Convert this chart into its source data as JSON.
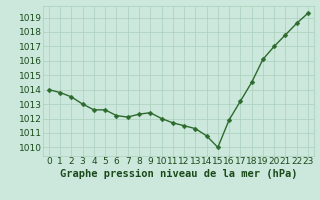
{
  "x": [
    0,
    1,
    2,
    3,
    4,
    5,
    6,
    7,
    8,
    9,
    10,
    11,
    12,
    13,
    14,
    15,
    16,
    17,
    18,
    19,
    20,
    21,
    22,
    23
  ],
  "y": [
    1014.0,
    1013.8,
    1013.5,
    1013.0,
    1012.6,
    1012.6,
    1012.2,
    1012.1,
    1012.3,
    1012.4,
    1012.0,
    1011.7,
    1011.5,
    1011.3,
    1010.8,
    1010.0,
    1011.9,
    1013.2,
    1014.5,
    1016.1,
    1017.0,
    1017.8,
    1018.6,
    1019.3
  ],
  "line_color": "#2d6a2d",
  "marker": "D",
  "marker_size": 2.5,
  "line_width": 1.0,
  "bg_color": "#cce8dc",
  "grid_color": "#aacfba",
  "xlabel": "Graphe pression niveau de la mer (hPa)",
  "xlabel_fontsize": 7.5,
  "xlabel_color": "#1a4a1a",
  "ytick_labels": [
    "1010",
    "1011",
    "1012",
    "1013",
    "1014",
    "1015",
    "1016",
    "1017",
    "1018",
    "1019"
  ],
  "ytick_values": [
    1010,
    1011,
    1012,
    1013,
    1014,
    1015,
    1016,
    1017,
    1018,
    1019
  ],
  "ylim": [
    1009.4,
    1019.8
  ],
  "xlim": [
    -0.5,
    23.5
  ],
  "xtick_labels": [
    "0",
    "1",
    "2",
    "3",
    "4",
    "5",
    "6",
    "7",
    "8",
    "9",
    "10",
    "11",
    "12",
    "13",
    "14",
    "15",
    "16",
    "17",
    "18",
    "19",
    "20",
    "21",
    "22",
    "23"
  ],
  "tick_fontsize": 6.5,
  "tick_color": "#1a4a1a"
}
